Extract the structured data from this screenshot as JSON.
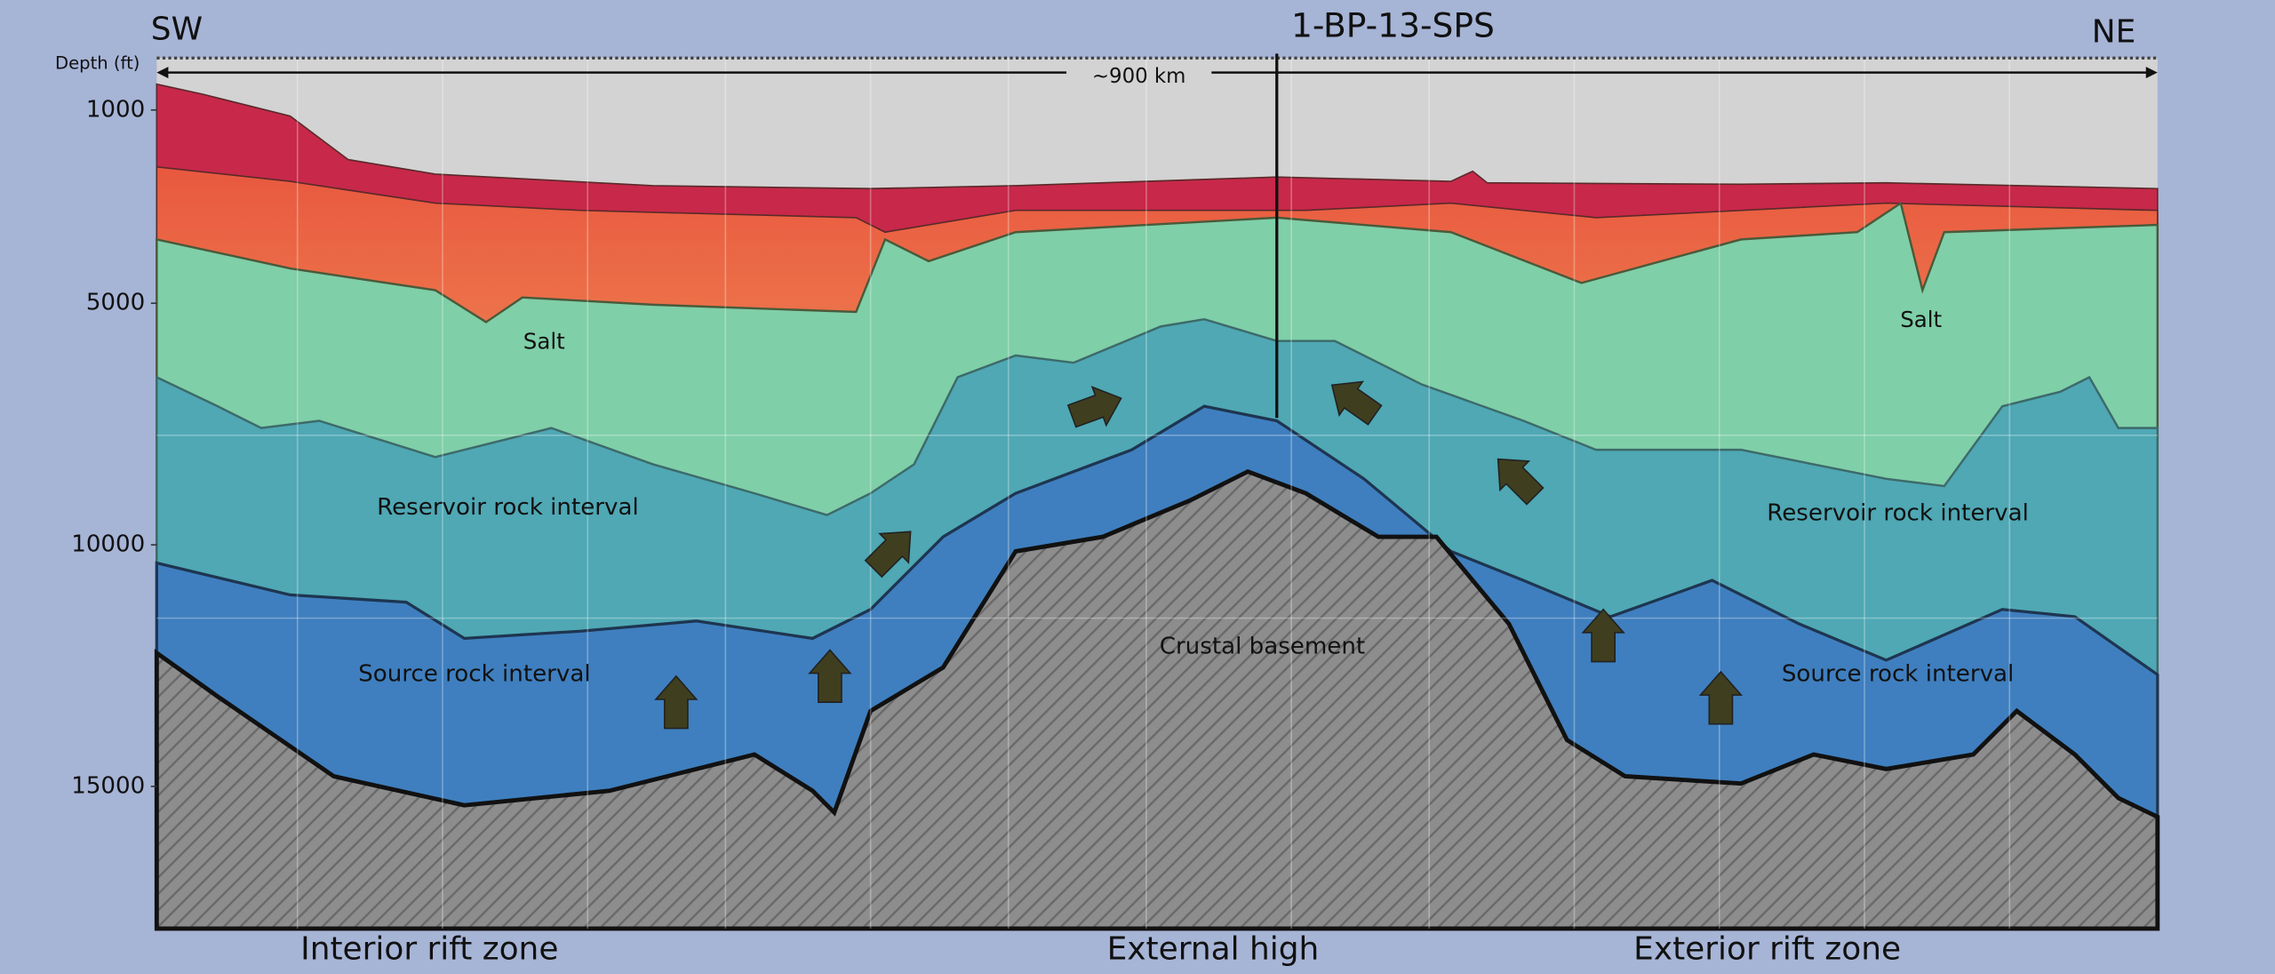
{
  "header": {
    "left": "SW",
    "right": "NE",
    "well": "1-BP-13-SPS",
    "distance": "~900 km"
  },
  "depth_axis": {
    "label": "Depth (ft)",
    "ticks": [
      1000,
      5000,
      10000,
      15000
    ]
  },
  "labels": {
    "salt_left": "Salt",
    "salt_right": "Salt",
    "reservoir_left": "Reservoir rock interval",
    "reservoir_right": "Reservoir rock interval",
    "source_left": "Source rock interval",
    "source_right": "Source rock interval",
    "basement": "Crustal basement"
  },
  "zones": [
    "Interior rift zone",
    "External high",
    "Exterior rift zone"
  ]
}
